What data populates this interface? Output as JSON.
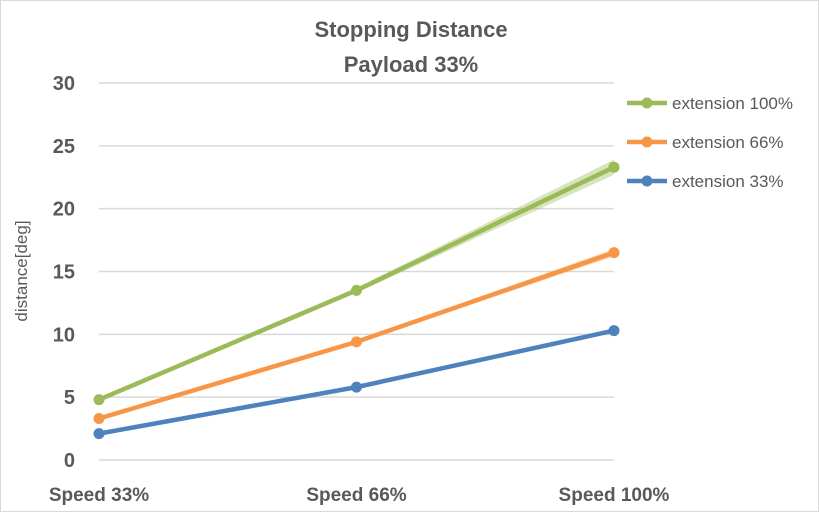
{
  "chart_data": {
    "type": "line",
    "title": "Stopping Distance",
    "subtitle": "Payload 33%",
    "xlabel": "",
    "ylabel": "distance[deg]",
    "ylim": [
      0,
      30
    ],
    "yticks": [
      0,
      5,
      10,
      15,
      20,
      25,
      30
    ],
    "categories": [
      "Speed 33%",
      "Speed 66%",
      "Speed 100%"
    ],
    "grid": true,
    "legend_position": "right",
    "series": [
      {
        "name": "extension 100%",
        "color": "#9bbb59",
        "values": [
          4.8,
          13.5,
          23.3
        ],
        "band": [
          0.1,
          0.2,
          0.6
        ]
      },
      {
        "name": "extension 66%",
        "color": "#f79646",
        "values": [
          3.3,
          9.4,
          16.5
        ],
        "band": [
          0.05,
          0.1,
          0.3
        ]
      },
      {
        "name": "extension 33%",
        "color": "#4f81bd",
        "values": [
          2.1,
          5.8,
          10.3
        ],
        "band": [
          0.05,
          0.05,
          0.1
        ]
      }
    ]
  }
}
